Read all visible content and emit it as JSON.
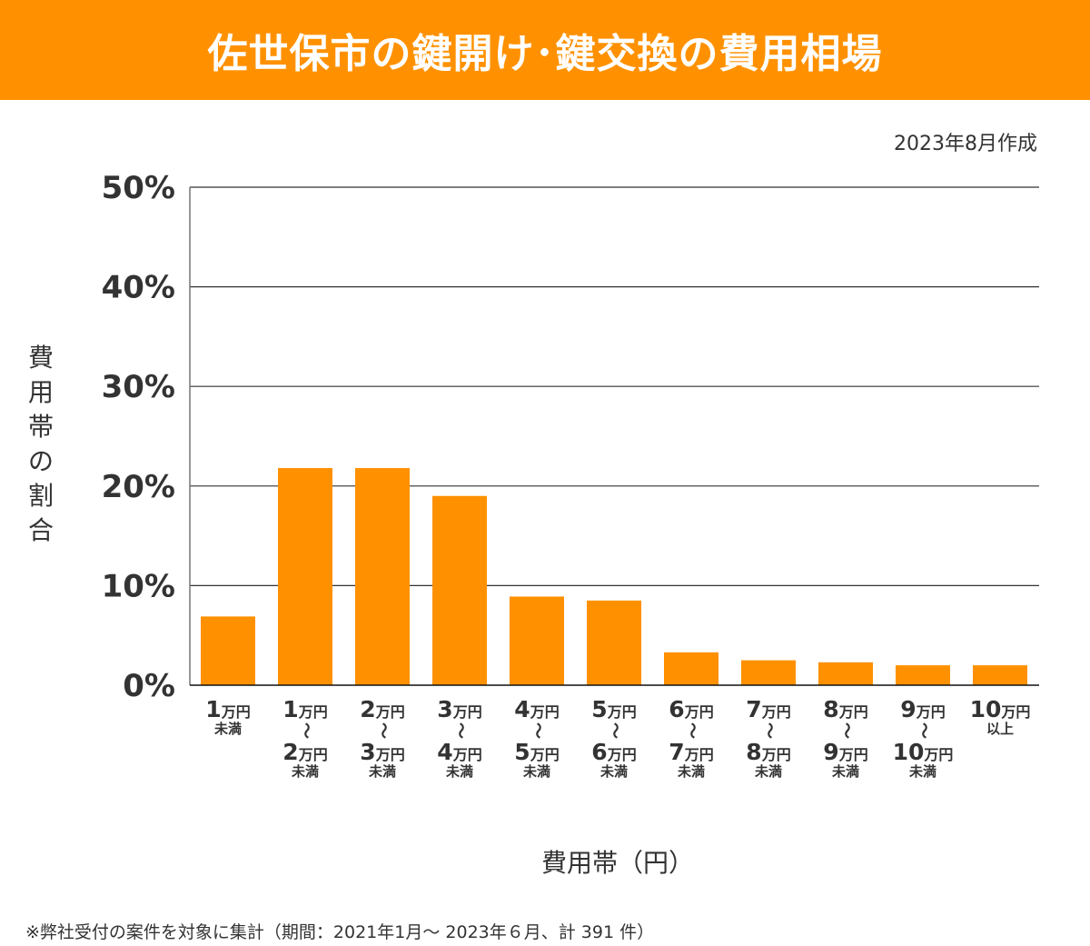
{
  "header": {
    "title": "佐世保市の鍵開け･鍵交換の費用相場"
  },
  "date_note": "2023年8月作成",
  "footnote": "※弊社受付の案件を対象に集計（期間：2021年1月～ 2023年６月、計 391 件）",
  "colors": {
    "header": "#ff9100",
    "bar": "#ff9100",
    "grid": "#333333"
  },
  "chart_data": {
    "type": "bar",
    "title": "佐世保市の鍵開け･鍵交換の費用相場",
    "ylabel": "費用帯の割合",
    "xlabel": "費用帯（円）",
    "ylim": [
      0,
      50
    ],
    "yticks": [
      "0%",
      "10%",
      "20%",
      "30%",
      "40%",
      "50%"
    ],
    "grid": true,
    "unit": "万円",
    "tilde": "〜",
    "categories": [
      {
        "from": "1",
        "to": "",
        "note": "未満"
      },
      {
        "from": "1",
        "to": "2",
        "note": "未満"
      },
      {
        "from": "2",
        "to": "3",
        "note": "未満"
      },
      {
        "from": "3",
        "to": "4",
        "note": "未満"
      },
      {
        "from": "4",
        "to": "5",
        "note": "未満"
      },
      {
        "from": "5",
        "to": "6",
        "note": "未満"
      },
      {
        "from": "6",
        "to": "7",
        "note": "未満"
      },
      {
        "from": "7",
        "to": "8",
        "note": "未満"
      },
      {
        "from": "8",
        "to": "9",
        "note": "未満"
      },
      {
        "from": "9",
        "to": "10",
        "note": "未満"
      },
      {
        "from": "10",
        "to": "",
        "note": "以上"
      }
    ],
    "values": [
      6.9,
      21.8,
      21.8,
      19.0,
      8.9,
      8.5,
      3.3,
      2.5,
      2.3,
      2.0,
      2.0
    ]
  }
}
